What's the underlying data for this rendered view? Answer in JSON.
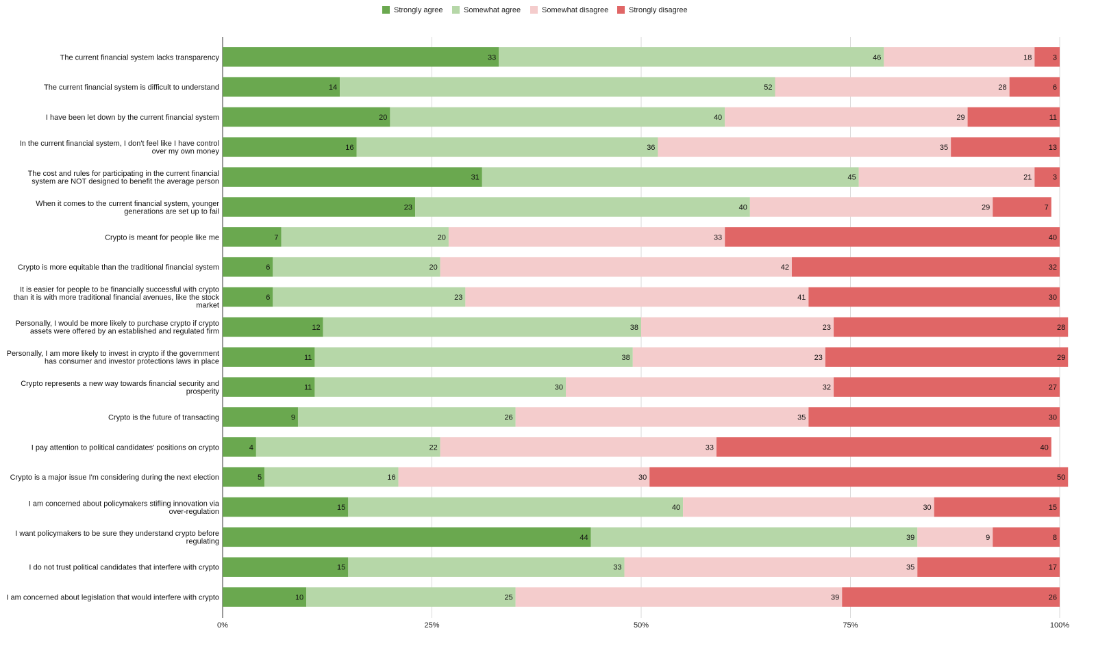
{
  "chart_data": {
    "type": "bar",
    "orientation": "horizontal",
    "stacked": true,
    "percent": true,
    "legend_position": "top-center",
    "grid": true,
    "xlim": [
      0,
      100
    ],
    "x_ticks": [
      "0%",
      "25%",
      "50%",
      "75%",
      "100%"
    ],
    "x_tick_values": [
      0,
      25,
      50,
      75,
      100
    ],
    "categories": [
      "The current financial system lacks transparency",
      "The current financial system is difficult to understand",
      "I have been let down by the current financial system",
      "In the current financial system, I don't feel like I have control over my own money",
      "The cost and rules for participating in the current financial system are NOT designed to benefit the average person",
      "When it comes to the current financial system, younger generations are set up to fail",
      "Crypto is meant for people like me",
      "Crypto is more equitable than the traditional financial system",
      "It is easier for people to be financially successful with crypto than it is with more traditional financial avenues, like the stock market",
      "Personally, I would be more likely to purchase crypto if crypto assets were offered by an established and regulated firm",
      "Personally, I am more likely to invest in crypto if the government has consumer and investor protections laws in place",
      "Crypto represents a new way towards financial security and prosperity",
      "Crypto is the future of transacting",
      "I pay attention to political candidates' positions on crypto",
      "Crypto is a major issue I'm considering during the next election",
      "I am concerned about policymakers stifling innovation via over-regulation",
      "I want policymakers to be sure they understand crypto before regulating",
      "I do not trust political candidates that interfere with crypto",
      "I am concerned about legislation that would interfere with crypto"
    ],
    "category_lines": [
      [
        "The current financial system lacks transparency"
      ],
      [
        "The current financial system is difficult to understand"
      ],
      [
        "I have been let down by the current financial system"
      ],
      [
        "In the current financial system, I don't feel like I have control",
        "over my own money"
      ],
      [
        "The cost and rules for participating in the current financial",
        "system are NOT designed to benefit the average person"
      ],
      [
        "When it comes to the current financial system, younger",
        "generations are set up to fail"
      ],
      [
        "Crypto is meant for people like me"
      ],
      [
        "Crypto is more equitable than the traditional financial system"
      ],
      [
        "It is easier for people to be financially successful with crypto",
        "than it is with more traditional financial avenues, like the stock",
        "market"
      ],
      [
        "Personally, I would be more likely to purchase crypto if crypto",
        "assets were offered by an established and regulated firm"
      ],
      [
        "Personally, I am more likely to invest in crypto if the government",
        "has consumer and investor protections laws in place"
      ],
      [
        "Crypto represents a new way towards financial security and",
        "prosperity"
      ],
      [
        "Crypto is the future of transacting"
      ],
      [
        "I pay attention to political candidates' positions on crypto"
      ],
      [
        "Crypto is a major issue I'm considering during the next election"
      ],
      [
        "I am concerned about policymakers stifling innovation via",
        "over-regulation"
      ],
      [
        "I want policymakers to be sure they understand crypto before",
        "regulating"
      ],
      [
        "I do not trust political candidates that interfere with crypto"
      ],
      [
        "I am concerned about legislation that would interfere with crypto"
      ]
    ],
    "series": [
      {
        "name": "Strongly agree",
        "color": "#6aa84f",
        "values": [
          33,
          14,
          20,
          16,
          31,
          23,
          7,
          6,
          6,
          12,
          11,
          11,
          9,
          4,
          5,
          15,
          44,
          15,
          10
        ]
      },
      {
        "name": "Somewhat agree",
        "color": "#b6d7a8",
        "values": [
          46,
          52,
          40,
          36,
          45,
          40,
          20,
          20,
          23,
          38,
          38,
          30,
          26,
          22,
          16,
          40,
          39,
          33,
          25
        ]
      },
      {
        "name": "Somewhat disagree",
        "color": "#f4cccc",
        "values": [
          18,
          28,
          29,
          35,
          21,
          29,
          33,
          42,
          41,
          23,
          23,
          32,
          35,
          33,
          30,
          30,
          9,
          35,
          39
        ]
      },
      {
        "name": "Strongly disagree",
        "color": "#e06666",
        "values": [
          3,
          6,
          11,
          13,
          3,
          7,
          40,
          32,
          30,
          28,
          29,
          27,
          30,
          40,
          50,
          15,
          8,
          17,
          26
        ]
      }
    ]
  }
}
